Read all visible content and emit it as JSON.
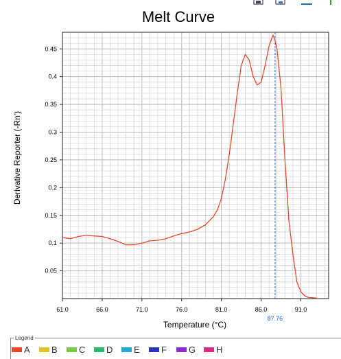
{
  "chart_data": {
    "type": "line",
    "title": "Melt Curve",
    "xlabel": "Temperature (°C)",
    "ylabel": "Derivative Reporter (-Rn')",
    "xlim": [
      61.0,
      94.5
    ],
    "ylim": [
      0,
      0.48
    ],
    "x_ticks": [
      "61.0",
      "66.0",
      "71.0",
      "76.0",
      "81.0",
      "86.0",
      "91.0"
    ],
    "y_ticks": [
      "0.05",
      "0.1",
      "0.15",
      "0.2",
      "0.25",
      "0.3",
      "0.35",
      "0.4",
      "0.45"
    ],
    "grid": true,
    "marker": {
      "x": 87.76,
      "label": "87.76",
      "color": "#1f5fd0"
    },
    "series": [
      {
        "color": "#e8472a",
        "x": [
          61.0,
          62.0,
          63.0,
          64.0,
          65.0,
          66.0,
          67.0,
          68.0,
          69.0,
          70.0,
          71.0,
          72.0,
          73.0,
          74.0,
          75.0,
          76.0,
          77.0,
          78.0,
          79.0,
          80.0,
          80.5,
          81.0,
          81.5,
          82.0,
          82.5,
          83.0,
          83.5,
          84.0,
          84.5,
          85.0,
          85.5,
          86.0,
          86.5,
          87.0,
          87.5,
          87.76,
          88.0,
          88.5,
          89.0,
          89.5,
          90.0,
          90.5,
          91.0,
          91.5,
          92.0,
          93.0
        ],
        "y": [
          0.11,
          0.108,
          0.112,
          0.114,
          0.113,
          0.112,
          0.108,
          0.103,
          0.097,
          0.097,
          0.1,
          0.104,
          0.105,
          0.108,
          0.113,
          0.117,
          0.12,
          0.125,
          0.133,
          0.148,
          0.16,
          0.18,
          0.215,
          0.26,
          0.315,
          0.37,
          0.42,
          0.44,
          0.43,
          0.4,
          0.385,
          0.39,
          0.42,
          0.455,
          0.475,
          0.465,
          0.45,
          0.38,
          0.25,
          0.14,
          0.08,
          0.03,
          0.012,
          0.005,
          0.002,
          0.001
        ]
      }
    ]
  },
  "legend": {
    "title": "Legend",
    "items": [
      {
        "label": "A",
        "color": "#e8472a"
      },
      {
        "label": "B",
        "color": "#e3c321"
      },
      {
        "label": "C",
        "color": "#7ac943"
      },
      {
        "label": "D",
        "color": "#2bb673"
      },
      {
        "label": "E",
        "color": "#1fa8d6"
      },
      {
        "label": "F",
        "color": "#2a35b8"
      },
      {
        "label": "G",
        "color": "#8a2bd6"
      },
      {
        "label": "H",
        "color": "#d62b8a"
      }
    ]
  },
  "toolbar": {
    "icons": [
      "save-icon",
      "export-icon",
      "lines-icon",
      "more-icon"
    ]
  }
}
